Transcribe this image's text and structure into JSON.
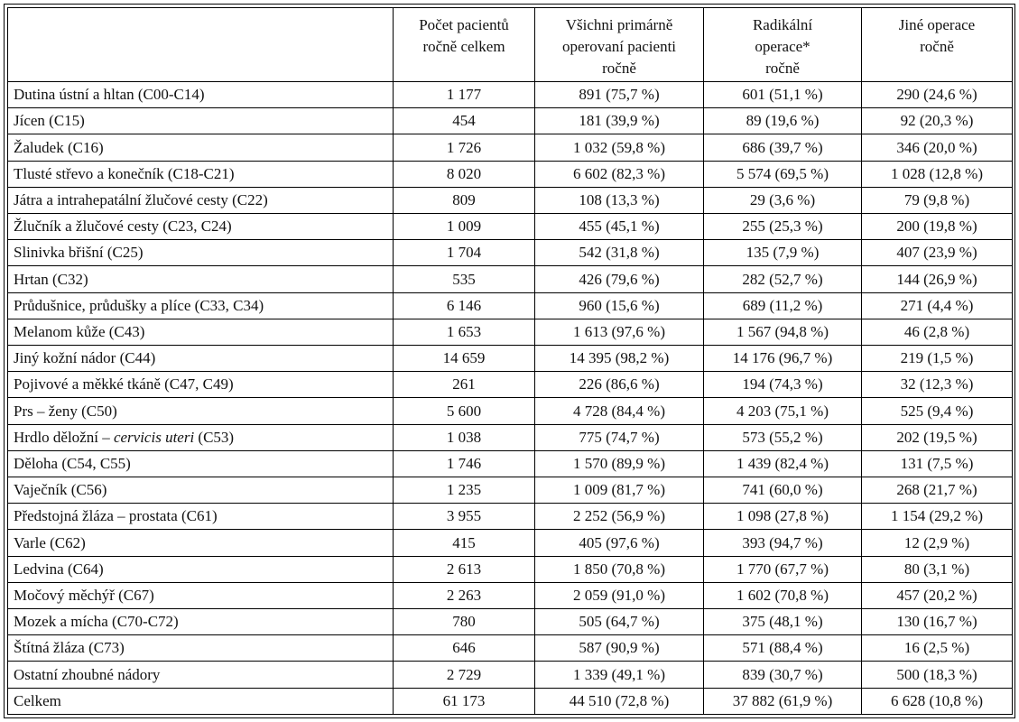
{
  "headers": [
    "",
    "Počet pacientů\nročně celkem",
    "Všichni primárně\noperovaní pacienti\nročně",
    "Radikální\noperace*\nročně",
    "Jiné operace\nročně"
  ],
  "rows": [
    {
      "name": "Dutina ústní a hltan (C00-C14)",
      "total": "1 177",
      "all": "891 (75,7 %)",
      "radical": "601 (51,1 %)",
      "other": "290 (24,6 %)"
    },
    {
      "name": "Jícen (C15)",
      "total": "454",
      "all": "181 (39,9 %)",
      "radical": "89 (19,6 %)",
      "other": "92 (20,3 %)"
    },
    {
      "name": "Žaludek (C16)",
      "total": "1 726",
      "all": "1 032 (59,8 %)",
      "radical": "686 (39,7 %)",
      "other": "346 (20,0 %)"
    },
    {
      "name": "Tlusté střevo a konečník (C18-C21)",
      "total": "8 020",
      "all": "6 602 (82,3 %)",
      "radical": "5 574 (69,5 %)",
      "other": "1 028 (12,8 %)"
    },
    {
      "name": "Játra a intrahepatální žlučové cesty (C22)",
      "total": "809",
      "all": "108 (13,3 %)",
      "radical": "29 (3,6 %)",
      "other": "79 (9,8 %)"
    },
    {
      "name": "Žlučník a žlučové cesty (C23, C24)",
      "total": "1 009",
      "all": "455 (45,1 %)",
      "radical": "255 (25,3 %)",
      "other": "200 (19,8 %)"
    },
    {
      "name": "Slinivka břišní (C25)",
      "total": "1 704",
      "all": "542 (31,8 %)",
      "radical": "135 (7,9 %)",
      "other": "407 (23,9 %)"
    },
    {
      "name": "Hrtan (C32)",
      "total": "535",
      "all": "426 (79,6 %)",
      "radical": "282 (52,7 %)",
      "other": "144 (26,9 %)"
    },
    {
      "name": "Průdušnice, průdušky a plíce (C33, C34)",
      "total": "6 146",
      "all": "960 (15,6 %)",
      "radical": "689 (11,2 %)",
      "other": "271 (4,4 %)"
    },
    {
      "name": "Melanom kůže (C43)",
      "total": "1 653",
      "all": "1 613 (97,6 %)",
      "radical": "1 567 (94,8 %)",
      "other": "46 (2,8 %)"
    },
    {
      "name": "Jiný kožní nádor (C44)",
      "total": "14 659",
      "all": "14 395 (98,2 %)",
      "radical": "14 176 (96,7 %)",
      "other": "219 (1,5 %)"
    },
    {
      "name": "Pojivové a měkké tkáně (C47, C49)",
      "total": "261",
      "all": "226 (86,6 %)",
      "radical": "194 (74,3 %)",
      "other": "32 (12,3 %)"
    },
    {
      "name": "Prs – ženy (C50)",
      "total": "5 600",
      "all": "4 728 (84,4 %)",
      "radical": "4 203 (75,1 %)",
      "other": "525 (9,4 %)"
    },
    {
      "name": "Hrdlo děložní – ",
      "name_italic": "cervicis uteri",
      "name_after": " (C53)",
      "total": "1 038",
      "all": "775 (74,7 %)",
      "radical": "573 (55,2 %)",
      "other": "202 (19,5 %)"
    },
    {
      "name": "Děloha (C54, C55)",
      "total": "1 746",
      "all": "1 570 (89,9 %)",
      "radical": "1 439 (82,4 %)",
      "other": "131 (7,5 %)"
    },
    {
      "name": "Vaječník (C56)",
      "total": "1 235",
      "all": "1 009 (81,7 %)",
      "radical": "741 (60,0 %)",
      "other": "268 (21,7 %)"
    },
    {
      "name": "Předstojná žláza – prostata (C61)",
      "total": "3 955",
      "all": "2 252 (56,9 %)",
      "radical": "1 098 (27,8 %)",
      "other": "1 154 (29,2 %)"
    },
    {
      "name": "Varle (C62)",
      "total": "415",
      "all": "405 (97,6 %)",
      "radical": "393 (94,7 %)",
      "other": "12 (2,9 %)"
    },
    {
      "name": "Ledvina (C64)",
      "total": "2 613",
      "all": "1 850 (70,8 %)",
      "radical": "1 770 (67,7 %)",
      "other": "80 (3,1 %)"
    },
    {
      "name": "Močový měchýř (C67)",
      "total": "2 263",
      "all": "2 059 (91,0 %)",
      "radical": "1 602 (70,8 %)",
      "other": "457 (20,2 %)"
    },
    {
      "name": "Mozek a mícha (C70-C72)",
      "total": "780",
      "all": "505 (64,7 %)",
      "radical": "375 (48,1 %)",
      "other": "130 (16,7 %)"
    },
    {
      "name": "Štítná žláza (C73)",
      "total": "646",
      "all": "587 (90,9 %)",
      "radical": "571 (88,4 %)",
      "other": "16 (2,5 %)"
    },
    {
      "name": "Ostatní zhoubné nádory",
      "total": "2 729",
      "all": "1 339 (49,1 %)",
      "radical": "839 (30,7 %)",
      "other": "500 (18,3 %)"
    },
    {
      "name": "Celkem",
      "total": "61 173",
      "all": "44 510 (72,8 %)",
      "radical": "37 882 (61,9 %)",
      "other": "6 628 (10,8 %)"
    }
  ]
}
